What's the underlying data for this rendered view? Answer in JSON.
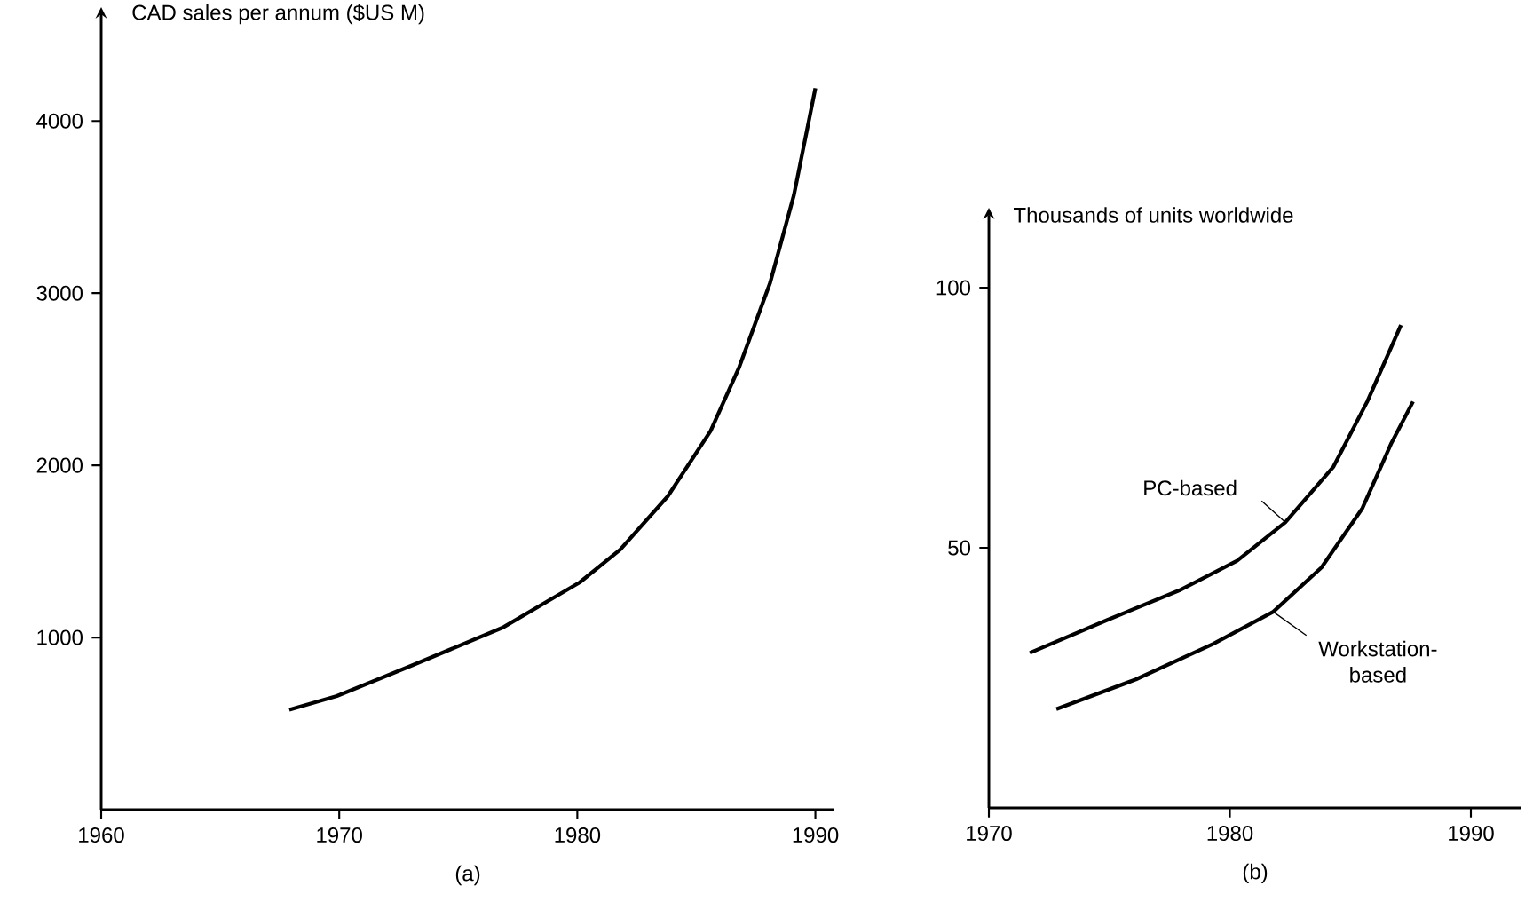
{
  "chart_data": [
    {
      "type": "line",
      "ylabel": "CAD sales per annum ($US M)",
      "annotations": [
        "(a)"
      ],
      "x": [
        1967.9,
        1969.9,
        1973.1,
        1976.9,
        1980.1,
        1981.8,
        1983.8,
        1985.6,
        1986.8,
        1988.1,
        1989.1,
        1990.0
      ],
      "series": [
        {
          "color": "#000000",
          "values": [
            580,
            660,
            840,
            1060,
            1320,
            1510,
            1820,
            2200,
            2570,
            3060,
            3570,
            4190
          ]
        }
      ],
      "xlim": [
        1960,
        1990.8
      ],
      "ylim": [
        0,
        4620
      ],
      "xticks": [
        1960,
        1970,
        1980,
        1990
      ],
      "yticks": [
        1000,
        2000,
        3000,
        4000
      ]
    },
    {
      "type": "line",
      "ylabel": "Thousands of units worldwide",
      "annotations": [
        "(b)"
      ],
      "series": [
        {
          "name": "PC-based",
          "color": "#000000",
          "x": [
            1971.7,
            1974.9,
            1977.9,
            1980.3,
            1982.3,
            1984.3,
            1985.7,
            1987.1
          ],
          "values": [
            29.8,
            36.1,
            41.8,
            47.5,
            54.9,
            65.6,
            78.1,
            92.8
          ]
        },
        {
          "name": "Workstation-based",
          "color": "#000000",
          "x": [
            1972.8,
            1976.1,
            1979.3,
            1981.8,
            1983.8,
            1985.5,
            1986.7,
            1987.6
          ],
          "values": [
            19.0,
            24.7,
            31.5,
            37.7,
            46.2,
            57.6,
            70.1,
            78.1
          ]
        }
      ],
      "xlim": [
        1970,
        1992.1
      ],
      "ylim": [
        0,
        114
      ],
      "xticks": [
        1970,
        1980,
        1990
      ],
      "yticks": [
        50,
        100
      ]
    }
  ]
}
